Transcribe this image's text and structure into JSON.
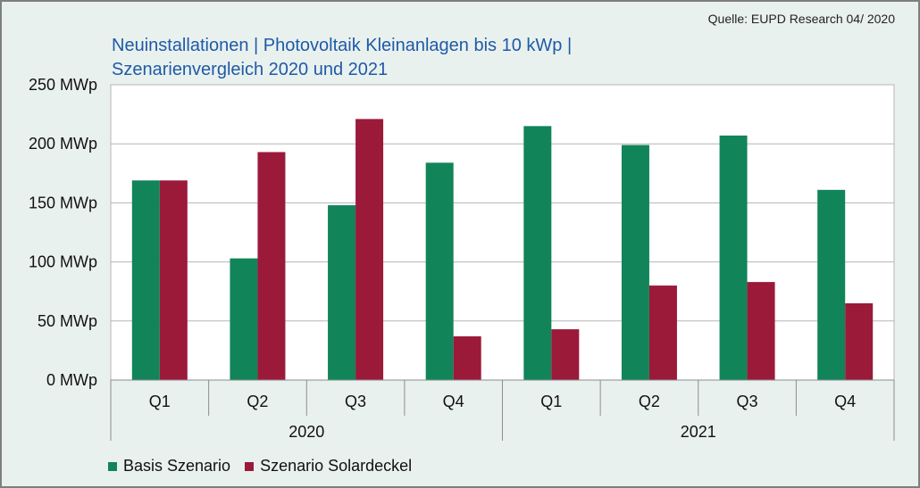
{
  "source": "Quelle: EUPD Research 04/ 2020",
  "title_lines": [
    "Neuinstallationen | Photovoltaik Kleinanlagen bis 10 kWp |",
    "Szenarienvergleich 2020 und 2021"
  ],
  "chart_data": {
    "type": "bar",
    "title": "Neuinstallationen | Photovoltaik Kleinanlagen bis 10 kWp | Szenarienvergleich 2020 und 2021",
    "categories": [
      "Q1",
      "Q2",
      "Q3",
      "Q4",
      "Q1",
      "Q2",
      "Q3",
      "Q4"
    ],
    "groups": [
      {
        "label": "2020",
        "categories": [
          "Q1",
          "Q2",
          "Q3",
          "Q4"
        ]
      },
      {
        "label": "2021",
        "categories": [
          "Q1",
          "Q2",
          "Q3",
          "Q4"
        ]
      }
    ],
    "series": [
      {
        "name": "Basis Szenario",
        "color": "#12845a",
        "values": [
          169,
          103,
          148,
          184,
          215,
          199,
          207,
          161
        ]
      },
      {
        "name": "Szenario Solardeckel",
        "color": "#9b1a3a",
        "values": [
          169,
          193,
          221,
          37,
          43,
          80,
          83,
          65
        ]
      }
    ],
    "y_ticks": [
      "0 MWp",
      "50 MWp",
      "100 MWp",
      "150 MWp",
      "200 MWp",
      "250 MWp"
    ],
    "ylim": [
      0,
      250
    ],
    "y_unit": "MWp",
    "grid": true,
    "legend_position": "bottom-left"
  }
}
